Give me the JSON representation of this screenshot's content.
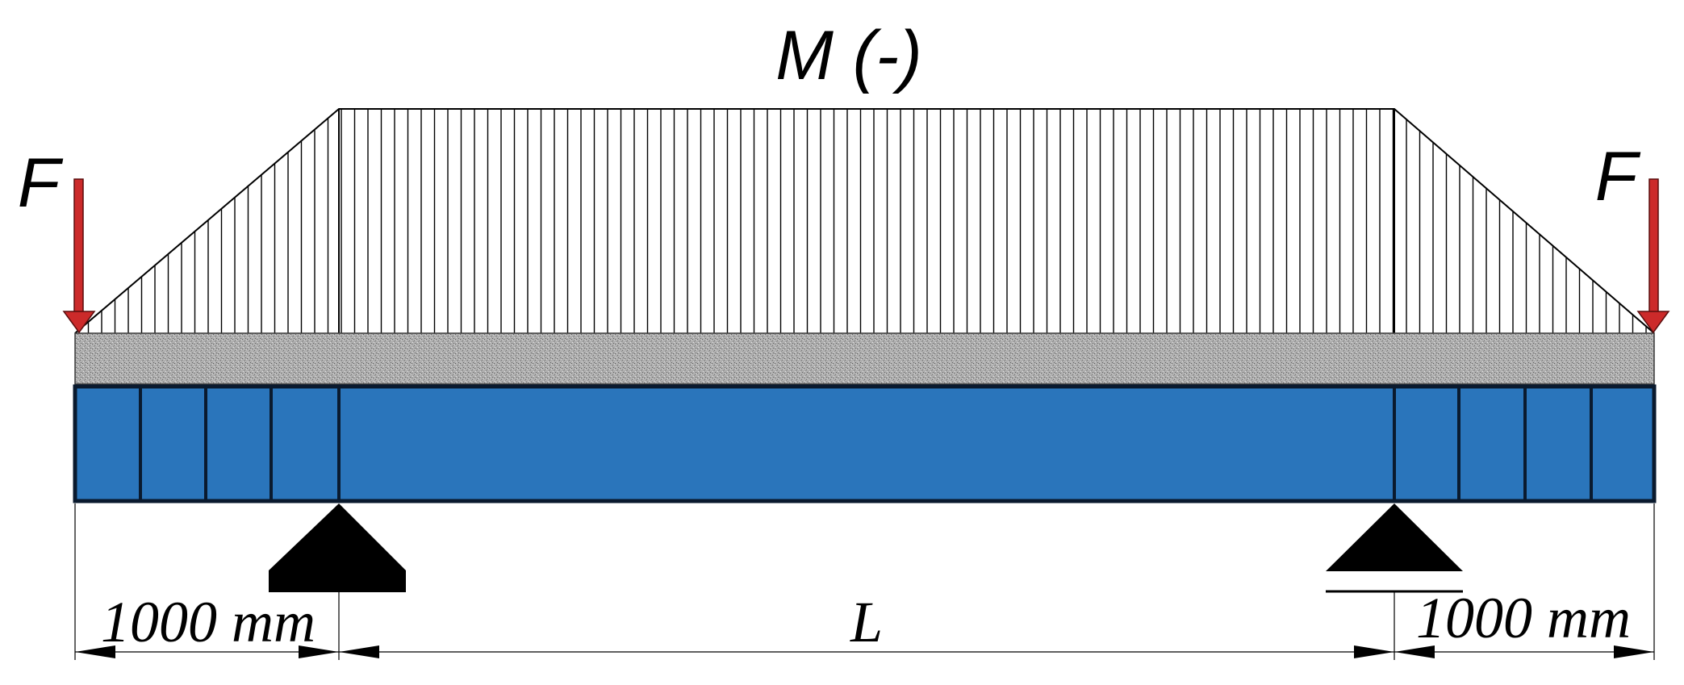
{
  "moment_label": "M (-)",
  "force_left_label": "F",
  "force_right_label": "F",
  "dim_left_label": "1000 mm",
  "dim_span_label": "L",
  "dim_right_label": "1000 mm",
  "colors": {
    "beam": "#2a75bb",
    "beam_outline": "#0a1a2e",
    "force_arrow": "#cc2a2a",
    "slab": "#a8a8a8",
    "support": "#000000",
    "hatch": "#000000"
  }
}
